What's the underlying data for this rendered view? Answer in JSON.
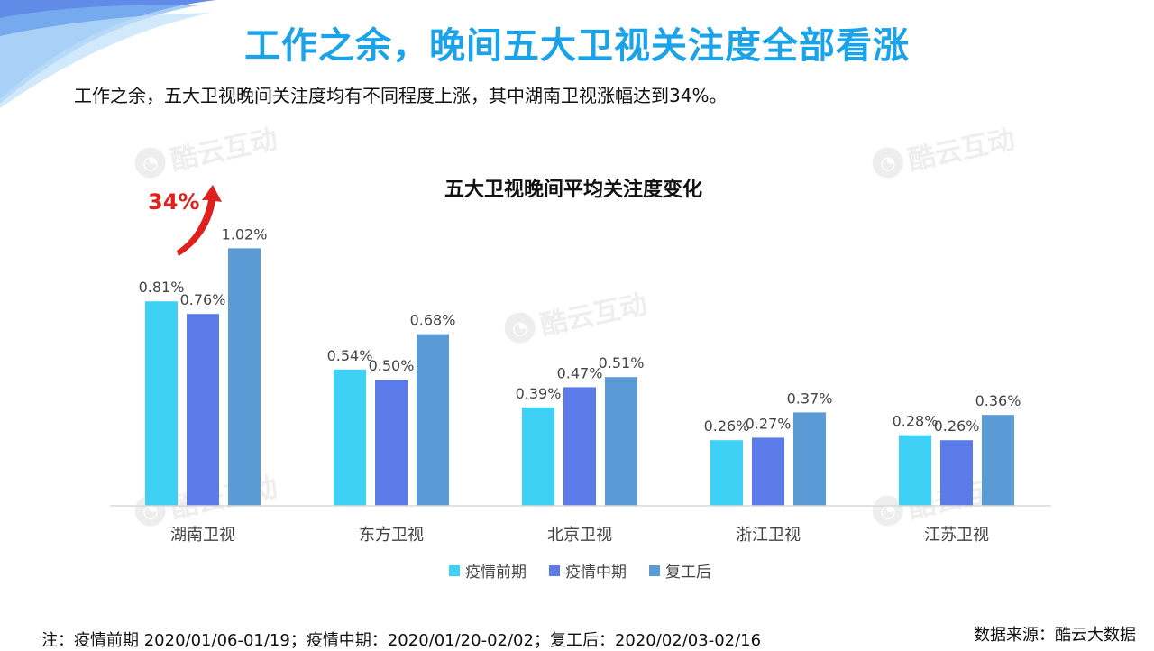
{
  "title": "工作之余，晚间五大卫视关注度全部看涨",
  "subtitle": "工作之余，五大卫视晚间关注度均有不同程度上涨，其中湖南卫视涨幅达到34%。",
  "watermark": "酷云互动",
  "growth_label": "34%",
  "footnote": "注：疫情前期 2020/01/06-01/19；疫情中期：2020/01/20-02/02；复工后：2020/02/03-02/16",
  "source": "数据来源：酷云大数据",
  "chart_data": {
    "type": "bar",
    "title": "五大卫视晚间平均关注度变化",
    "categories": [
      "湖南卫视",
      "东方卫视",
      "北京卫视",
      "浙江卫视",
      "江苏卫视"
    ],
    "series": [
      {
        "name": "疫情前期",
        "color": "#3fd0f5",
        "values": [
          0.81,
          0.54,
          0.39,
          0.26,
          0.28
        ],
        "labels": [
          "0.81%",
          "0.54%",
          "0.39%",
          "0.26%",
          "0.28%"
        ]
      },
      {
        "name": "疫情中期",
        "color": "#5b7ce8",
        "values": [
          0.76,
          0.5,
          0.47,
          0.27,
          0.26
        ],
        "labels": [
          "0.76%",
          "0.50%",
          "0.47%",
          "0.27%",
          "0.26%"
        ]
      },
      {
        "name": "复工后",
        "color": "#5b9bd5",
        "values": [
          1.02,
          0.68,
          0.51,
          0.37,
          0.36
        ],
        "labels": [
          "1.02%",
          "0.68%",
          "0.51%",
          "0.37%",
          "0.36%"
        ]
      }
    ],
    "legend_position": "bottom",
    "grid": false
  }
}
